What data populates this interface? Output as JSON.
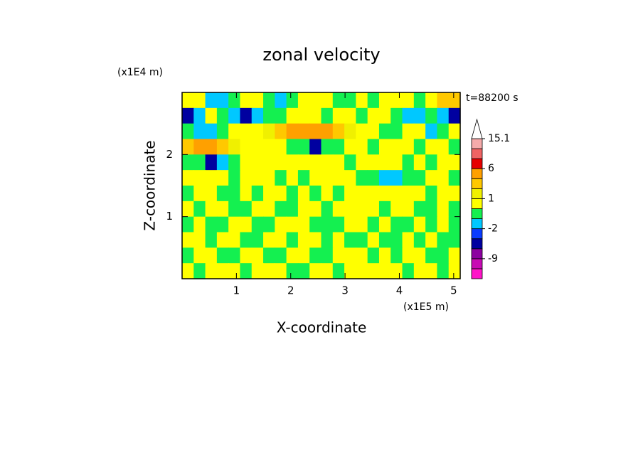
{
  "chart_data": {
    "type": "contour",
    "title": "zonal velocity",
    "x_label": "X-coordinate",
    "y_label": "Z-coordinate",
    "x_unit": "(x1E5 m)",
    "y_unit": "(x1E4 m)",
    "time_label": "t=88200 s",
    "xlim": [
      0,
      5.12
    ],
    "ylim": [
      0,
      3.0
    ],
    "xticks": [
      1,
      2,
      3,
      4,
      5
    ],
    "yticks": [
      1,
      2
    ],
    "z": [
      [
        0.5,
        0.5,
        -1.5,
        -1.5,
        -0.5,
        0.5,
        0.5,
        -0.5,
        -1.5,
        -0.5,
        0.5,
        0.5,
        0.5,
        -0.5,
        -0.5,
        0.5,
        -0.5,
        0.5,
        0.5,
        0.5,
        -0.5,
        0.5,
        2.5,
        2.5
      ],
      [
        -4,
        -1.5,
        0.5,
        -0.5,
        -1.5,
        -4,
        -1.5,
        -0.5,
        -0.5,
        0.5,
        0.5,
        0.5,
        -0.5,
        0.5,
        0.5,
        -0.5,
        0.5,
        0.5,
        -0.5,
        -1.5,
        -1.5,
        -0.5,
        -1.5,
        -4
      ],
      [
        -0.5,
        -1.5,
        -1.5,
        -0.5,
        0.5,
        0.5,
        0.5,
        1.5,
        2.5,
        4,
        4,
        4,
        4,
        2.5,
        1.5,
        0.5,
        0.5,
        -0.5,
        -0.5,
        0.5,
        0.5,
        -1.5,
        -0.5,
        0.5
      ],
      [
        2.5,
        4,
        4,
        2.5,
        1.5,
        0.5,
        0.5,
        0.5,
        0.5,
        -0.5,
        -0.5,
        -4,
        -0.5,
        -0.5,
        0.5,
        0.5,
        -0.5,
        0.5,
        0.5,
        0.5,
        -0.5,
        0.5,
        0.5,
        -0.5
      ],
      [
        -0.5,
        -0.5,
        -4,
        -1.5,
        -0.5,
        0.5,
        0.5,
        0.5,
        0.5,
        0.5,
        0.5,
        0.5,
        0.5,
        0.5,
        -0.5,
        0.5,
        0.5,
        0.5,
        0.5,
        -0.5,
        0.5,
        -0.5,
        0.5,
        0.5
      ],
      [
        0.5,
        0.5,
        0.5,
        0.5,
        -0.5,
        0.5,
        0.5,
        0.5,
        -0.5,
        0.5,
        -0.5,
        0.5,
        0.5,
        0.5,
        0.5,
        -0.5,
        -0.5,
        -1.5,
        -1.5,
        -0.5,
        -0.5,
        0.5,
        0.5,
        -0.5
      ],
      [
        -0.5,
        0.5,
        0.5,
        -0.5,
        -0.5,
        0.5,
        -0.5,
        0.5,
        0.5,
        -0.5,
        0.5,
        -0.5,
        0.5,
        -0.5,
        0.5,
        0.5,
        0.5,
        0.5,
        0.5,
        0.5,
        0.5,
        -0.5,
        0.5,
        0.5
      ],
      [
        0.5,
        -0.5,
        0.5,
        0.5,
        -0.5,
        -0.5,
        0.5,
        0.5,
        -0.5,
        -0.5,
        0.5,
        0.5,
        -0.5,
        0.5,
        0.5,
        0.5,
        0.5,
        -0.5,
        0.5,
        0.5,
        -0.5,
        -0.5,
        0.5,
        -0.5
      ],
      [
        -0.5,
        0.5,
        -0.5,
        -0.5,
        0.5,
        0.5,
        -0.5,
        -0.5,
        0.5,
        0.5,
        0.5,
        -0.5,
        -0.5,
        -0.5,
        0.5,
        0.5,
        -0.5,
        0.5,
        -0.5,
        -0.5,
        0.5,
        -0.5,
        0.5,
        -0.5
      ],
      [
        0.5,
        0.5,
        -0.5,
        0.5,
        0.5,
        -0.5,
        -0.5,
        0.5,
        0.5,
        -0.5,
        0.5,
        0.5,
        -0.5,
        0.5,
        -0.5,
        -0.5,
        0.5,
        -0.5,
        -0.5,
        0.5,
        -0.5,
        0.5,
        -0.5,
        -0.5
      ],
      [
        -0.5,
        0.5,
        0.5,
        -0.5,
        -0.5,
        0.5,
        0.5,
        -0.5,
        -0.5,
        0.5,
        0.5,
        -0.5,
        -0.5,
        0.5,
        0.5,
        0.5,
        -0.5,
        0.5,
        -0.5,
        0.5,
        0.5,
        -0.5,
        -0.5,
        0.5
      ],
      [
        0.5,
        -0.5,
        0.5,
        0.5,
        0.5,
        -0.5,
        0.5,
        0.5,
        0.5,
        -0.5,
        -0.5,
        0.5,
        0.5,
        -0.5,
        0.5,
        0.5,
        0.5,
        0.5,
        0.5,
        -0.5,
        0.5,
        0.5,
        -0.5,
        0.5
      ]
    ],
    "colorbar": {
      "levels": [
        -15,
        -12,
        -9,
        -6,
        -3,
        -2,
        -1,
        0,
        1,
        2,
        3,
        6,
        9,
        12,
        15.1
      ],
      "colors": [
        "#ff14c8",
        "#c80ab4",
        "#8c00a0",
        "#0000a0",
        "#0a3cff",
        "#00c8ff",
        "#14f050",
        "#ffff00",
        "#f0f000",
        "#ffc800",
        "#ffa000",
        "#e60000",
        "#f06464",
        "#f5aaaa"
      ],
      "extend_color": "#ffffff",
      "ticks": [
        15.1,
        6,
        1,
        -2,
        -9
      ]
    }
  }
}
